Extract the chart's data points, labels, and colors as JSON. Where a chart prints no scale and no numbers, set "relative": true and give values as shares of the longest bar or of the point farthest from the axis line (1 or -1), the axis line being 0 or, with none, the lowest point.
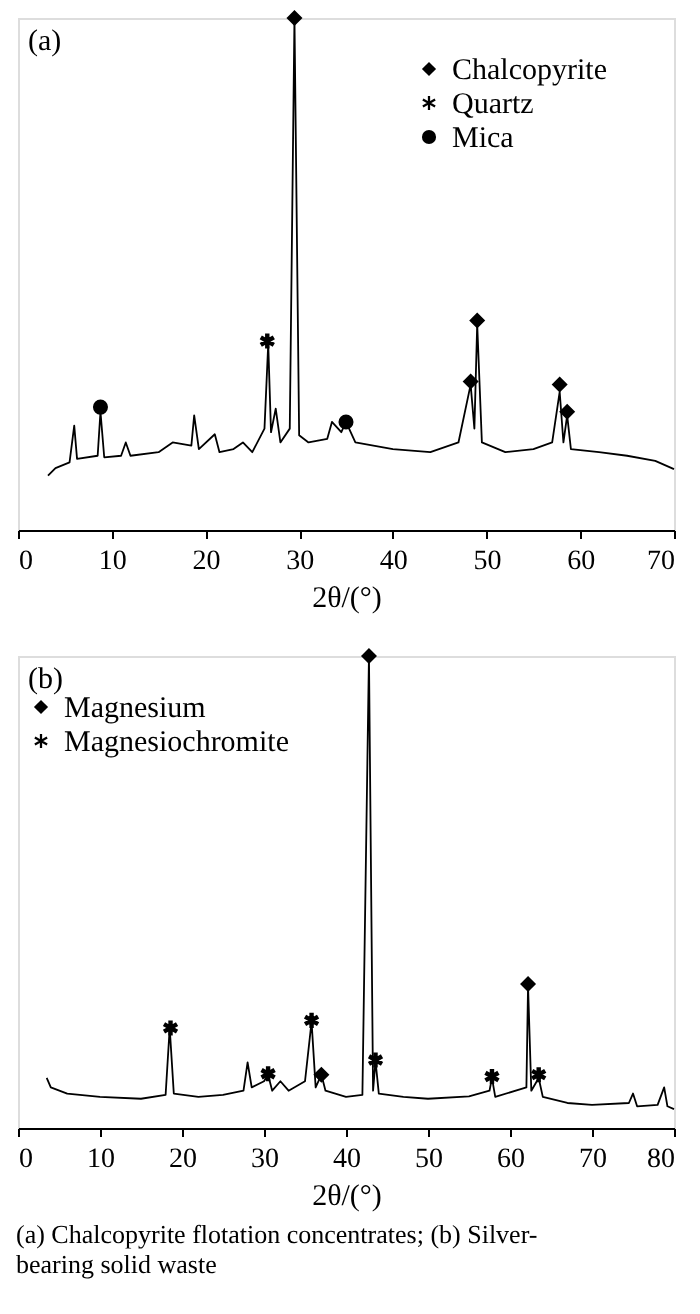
{
  "chart_data": [
    {
      "type": "line",
      "title": "(a)",
      "xlabel": "2θ/(°)",
      "relative": true,
      "xlim": [
        0,
        70
      ],
      "xticks": [
        0,
        10,
        20,
        30,
        40,
        50,
        60,
        70
      ],
      "legend": "top right",
      "grid": false,
      "series": [
        {
          "color": "#000000",
          "x": [
            3.2,
            4,
            5.5,
            6,
            6.3,
            8.5,
            8.8,
            9.2,
            11,
            11.5,
            12,
            15,
            16.5,
            18.5,
            18.8,
            19.3,
            21,
            21.5,
            23,
            24,
            25,
            26.3,
            26.7,
            27,
            27.5,
            28,
            29,
            29.5,
            30,
            31,
            33,
            33.5,
            34.5,
            35,
            36,
            40,
            44,
            47,
            48.3,
            48.7,
            49,
            49.5,
            52,
            55,
            57,
            57.8,
            58.2,
            58.6,
            59,
            62,
            65,
            68,
            70
          ],
          "values": [
            0.106,
            0.121,
            0.132,
            0.204,
            0.139,
            0.145,
            0.231,
            0.142,
            0.145,
            0.171,
            0.145,
            0.152,
            0.171,
            0.165,
            0.224,
            0.158,
            0.187,
            0.152,
            0.158,
            0.171,
            0.152,
            0.198,
            0.363,
            0.191,
            0.237,
            0.171,
            0.198,
            1.0,
            0.185,
            0.171,
            0.178,
            0.211,
            0.191,
            0.211,
            0.171,
            0.158,
            0.152,
            0.171,
            0.284,
            0.198,
            0.402,
            0.171,
            0.152,
            0.158,
            0.171,
            0.27,
            0.171,
            0.224,
            0.158,
            0.152,
            0.145,
            0.135,
            0.119
          ]
        },
        {
          "type": "scatter",
          "name": "Chalcopyrite",
          "marker": "diamond",
          "color": "#000000",
          "x": [
            29.5,
            48.3,
            49,
            57.8,
            58.6
          ],
          "values": [
            1.0,
            0.29,
            0.409,
            0.284,
            0.231
          ]
        },
        {
          "type": "scatter",
          "name": "Quartz",
          "marker": "cross",
          "color": "#000000",
          "x": [
            26.6
          ],
          "values": [
            0.369
          ]
        },
        {
          "type": "scatter",
          "name": "Mica",
          "marker": "circle",
          "color": "#000000",
          "x": [
            8.8,
            35
          ],
          "values": [
            0.24,
            0.211
          ]
        }
      ]
    },
    {
      "type": "line",
      "title": "(b)",
      "xlabel": "2θ/(°)",
      "relative": true,
      "xlim": [
        0,
        80
      ],
      "xticks": [
        0,
        10,
        20,
        30,
        40,
        50,
        60,
        70,
        80
      ],
      "legend": "top left",
      "grid": false,
      "annotations": [
        "(a) Chalcopyrite flotation concentrates; (b) Silver-bearing solid waste"
      ],
      "series": [
        {
          "color": "#000000",
          "x": [
            3.5,
            4,
            6,
            10,
            15,
            18,
            18.5,
            19,
            22,
            25,
            27.5,
            28,
            28.5,
            30,
            30.5,
            31,
            32,
            33,
            35,
            35.8,
            36.3,
            37,
            37.5,
            40,
            42,
            42.8,
            43.3,
            43.6,
            44,
            47,
            50,
            55,
            57.5,
            57.8,
            58.2,
            62,
            62.2,
            62.6,
            63.5,
            64,
            67,
            70,
            74.5,
            75,
            75.5,
            78,
            78.8,
            79.2,
            80
          ],
          "values": [
            0.106,
            0.086,
            0.073,
            0.066,
            0.062,
            0.07,
            0.212,
            0.073,
            0.066,
            0.07,
            0.079,
            0.139,
            0.086,
            0.099,
            0.113,
            0.079,
            0.099,
            0.079,
            0.099,
            0.225,
            0.086,
            0.113,
            0.079,
            0.066,
            0.07,
            1.0,
            0.079,
            0.142,
            0.073,
            0.066,
            0.062,
            0.067,
            0.079,
            0.106,
            0.066,
            0.086,
            0.301,
            0.079,
            0.106,
            0.066,
            0.053,
            0.049,
            0.053,
            0.073,
            0.046,
            0.049,
            0.086,
            0.046,
            0.04
          ]
        },
        {
          "type": "scatter",
          "name": "Magnesium",
          "marker": "diamond",
          "color": "#000000",
          "x": [
            37,
            42.8,
            62.2
          ],
          "values": [
            0.113,
            1.0,
            0.305
          ]
        },
        {
          "type": "scatter",
          "name": "Magnesiochromite",
          "marker": "cross",
          "color": "#000000",
          "x": [
            18.6,
            30.5,
            35.8,
            43.6,
            57.8,
            63.5
          ],
          "values": [
            0.212,
            0.115,
            0.228,
            0.144,
            0.109,
            0.113
          ]
        }
      ]
    }
  ]
}
